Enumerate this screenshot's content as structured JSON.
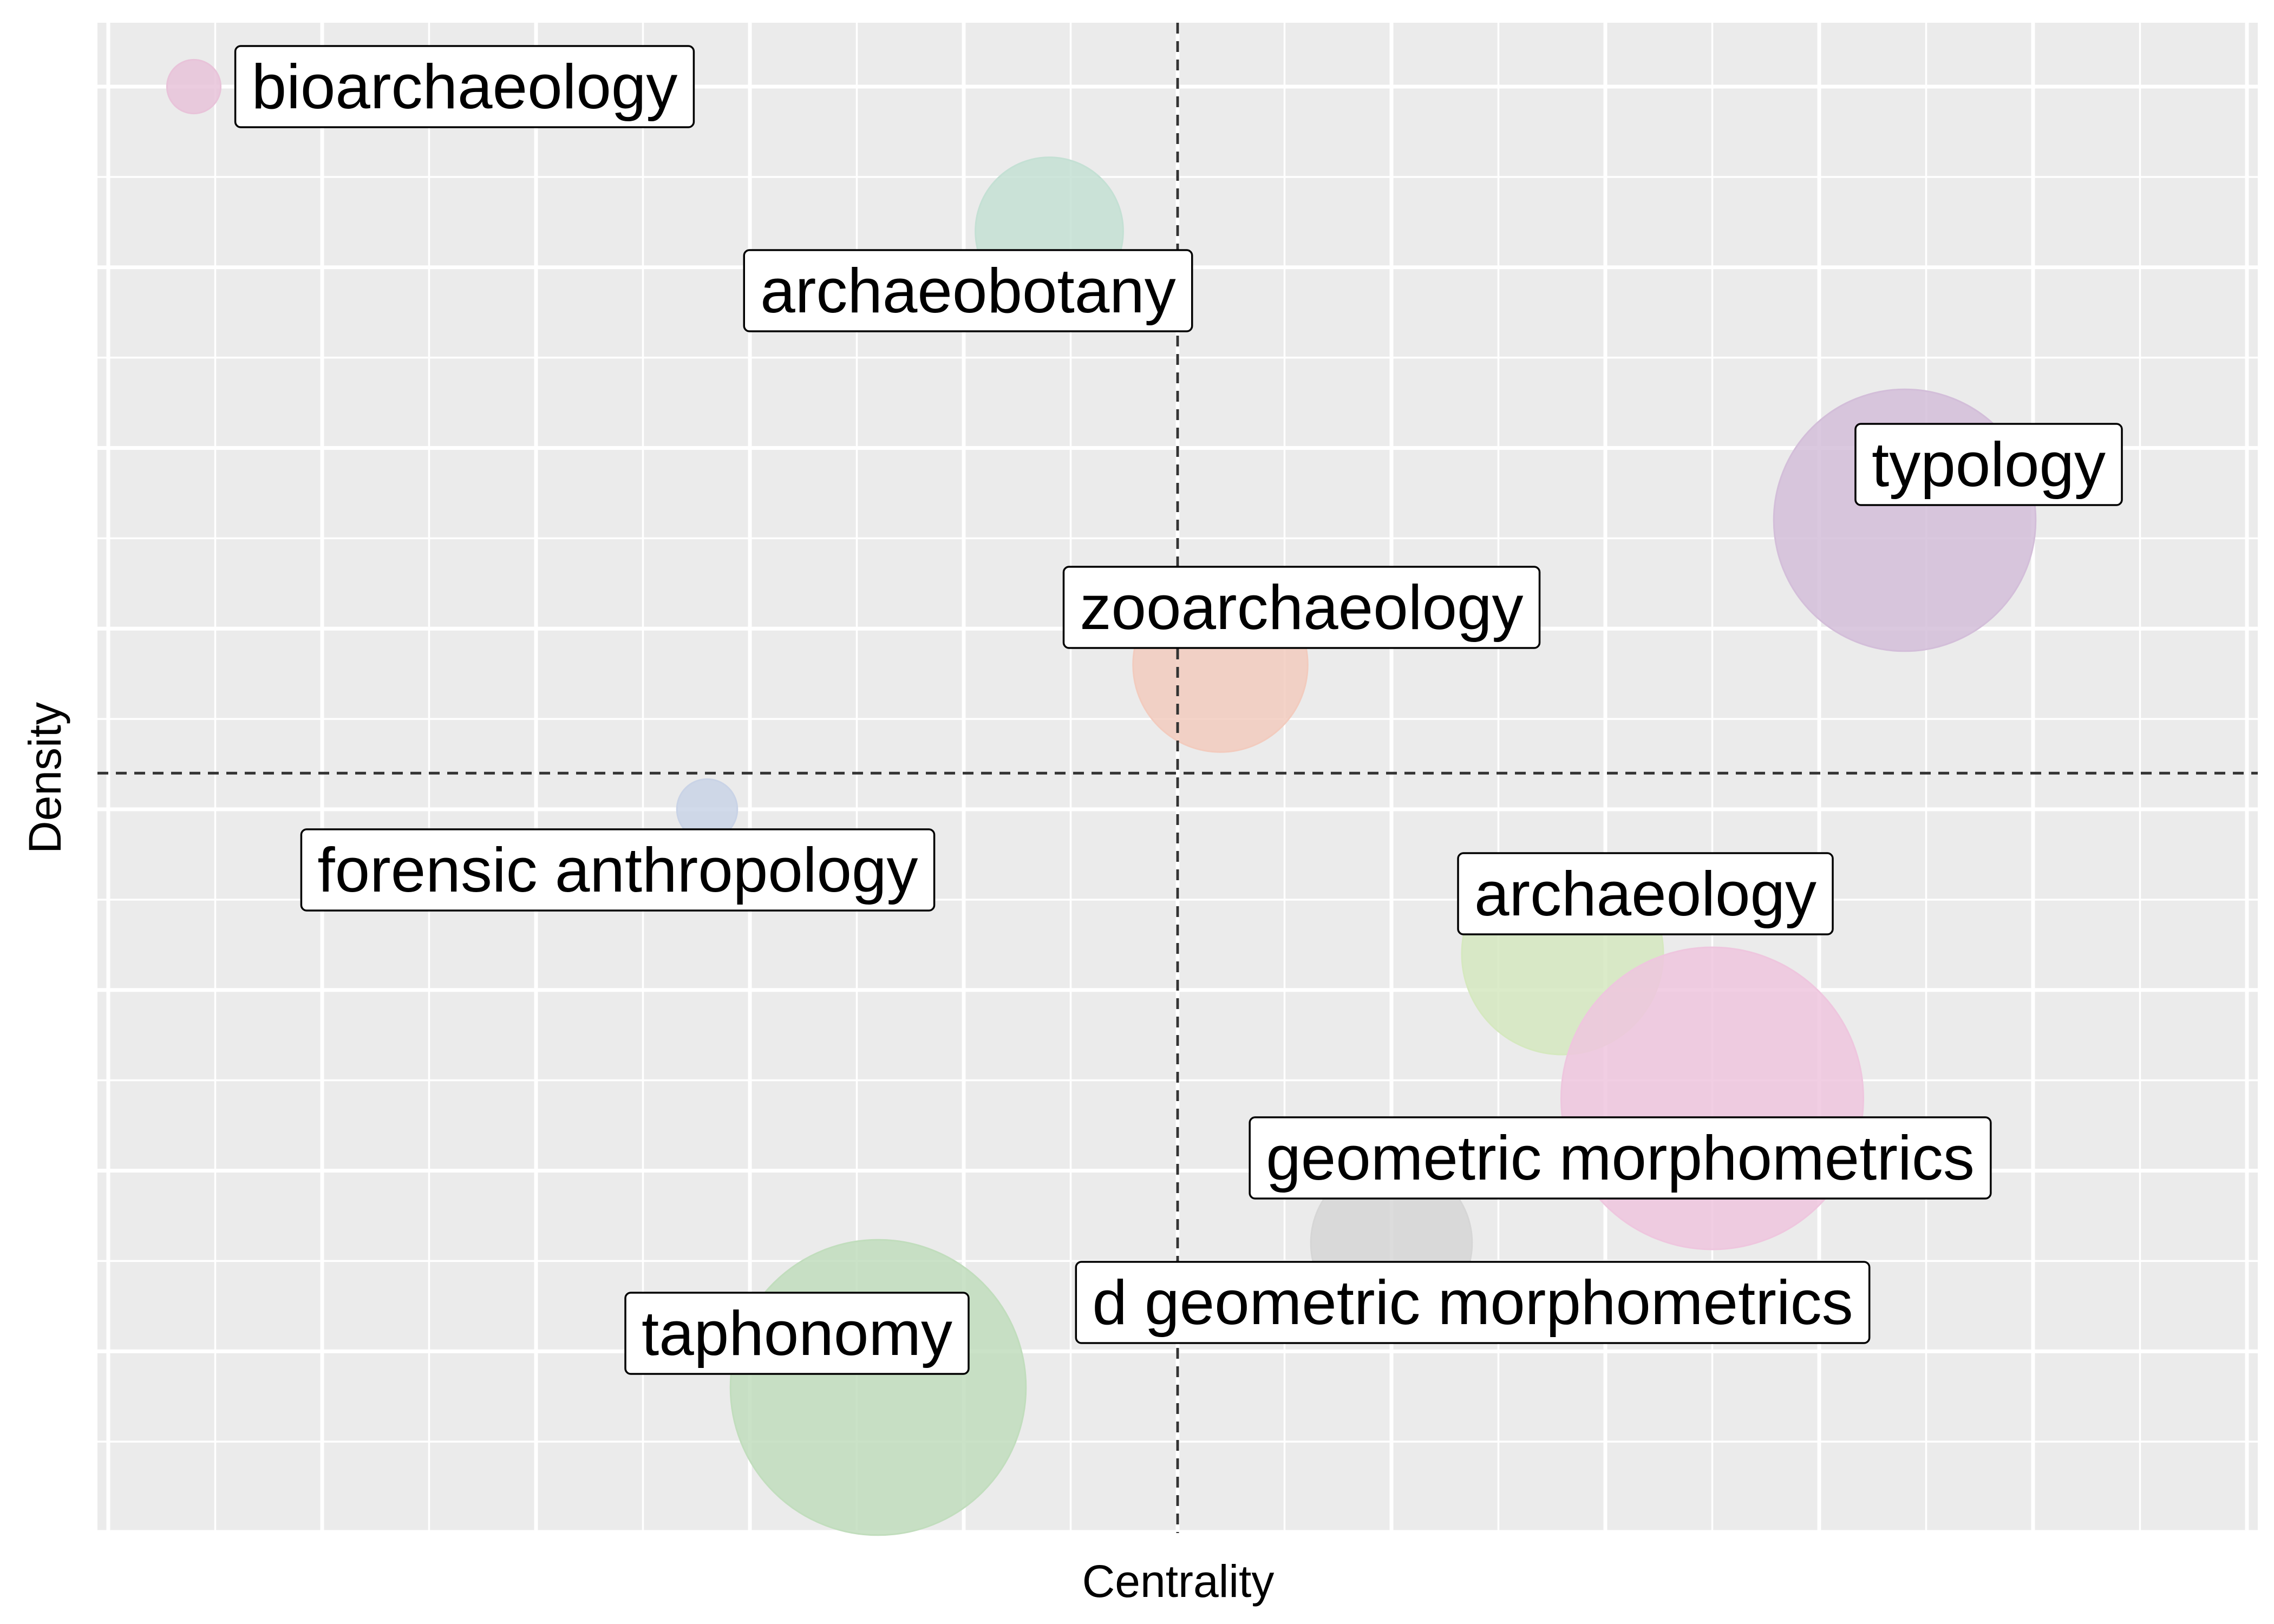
{
  "chart_data": {
    "type": "scatter",
    "subtype": "bubble",
    "title": "",
    "xlabel": "Centrality",
    "ylabel": "Density",
    "xlim": [
      0,
      10
    ],
    "ylim": [
      0,
      8
    ],
    "grid": true,
    "tick_labels_shown": false,
    "reference_lines": {
      "x": 5,
      "y": 4.2
    },
    "colors": {
      "panel": "#EBEBEB",
      "grid": "#FFFFFF",
      "reference_line": "#333333"
    },
    "points": [
      {
        "label": "bioarchaeology",
        "x": 0.4,
        "y": 8.0,
        "size": 0.8,
        "color": "#E8C3D9"
      },
      {
        "label": "archaeobotany",
        "x": 4.4,
        "y": 7.2,
        "size": 2.2,
        "color": "#C4E0D4"
      },
      {
        "label": "typology",
        "x": 8.4,
        "y": 5.6,
        "size": 3.9,
        "color": "#D3BED9"
      },
      {
        "label": "zooarchaeology",
        "x": 5.2,
        "y": 4.8,
        "size": 2.6,
        "color": "#F2CBBE"
      },
      {
        "label": "forensic anthropology",
        "x": 2.8,
        "y": 4.0,
        "size": 0.9,
        "color": "#C9D3E6"
      },
      {
        "label": "archaeology",
        "x": 6.8,
        "y": 3.2,
        "size": 3.0,
        "color": "#D5E8BF"
      },
      {
        "label": "geometric morphometrics",
        "x": 7.5,
        "y": 2.4,
        "size": 4.5,
        "color": "#EEC6DE"
      },
      {
        "label": "d geometric morphometrics",
        "x": 6.0,
        "y": 1.6,
        "size": 2.4,
        "color": "#D6D6D6"
      },
      {
        "label": "taphonomy",
        "x": 3.6,
        "y": 0.8,
        "size": 4.4,
        "color": "#C1DDBD"
      }
    ]
  }
}
